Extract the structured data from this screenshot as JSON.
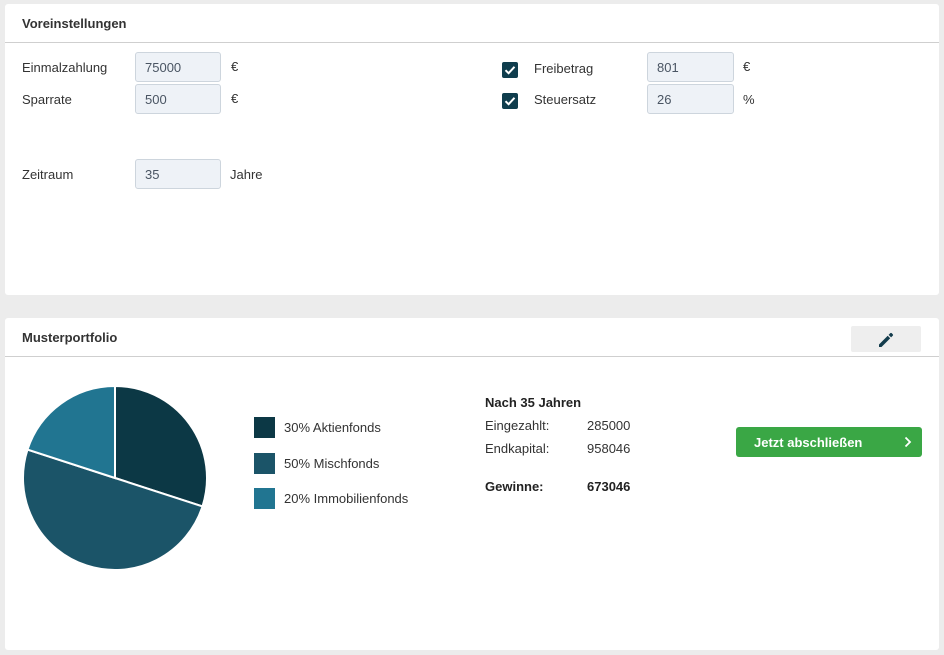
{
  "settings": {
    "title": "Voreinstellungen",
    "einmalzahlung": {
      "label": "Einmalzahlung",
      "value": "75000",
      "unit": "€"
    },
    "sparrate": {
      "label": "Sparrate",
      "value": "500",
      "unit": "€"
    },
    "zeitraum": {
      "label": "Zeitraum",
      "value": "35",
      "unit": "Jahre"
    },
    "freibetrag": {
      "label": "Freibetrag",
      "value": "801",
      "unit": "€",
      "checked": true
    },
    "steuersatz": {
      "label": "Steuersatz",
      "value": "26",
      "unit": "%",
      "checked": true
    }
  },
  "portfolio": {
    "title": "Musterportfolio",
    "edit_icon": "pencil-icon",
    "legend": [
      {
        "label": "30% Aktienfonds",
        "color": "#0c3845"
      },
      {
        "label": "50% Mischfonds",
        "color": "#1b5468"
      },
      {
        "label": "20% Immobilienfonds",
        "color": "#217591"
      }
    ],
    "summary": {
      "title": "Nach 35 Jahren",
      "eingezahlt_label": "Eingezahlt:",
      "eingezahlt_value": "285000",
      "endkapital_label": "Endkapital:",
      "endkapital_value": "958046",
      "gewinne_label": "Gewinne:",
      "gewinne_value": "673046"
    },
    "cta_label": "Jetzt abschließen",
    "cta_icon": "chevron-right-icon",
    "cta_color": "#3aa745"
  },
  "chart_data": {
    "type": "pie",
    "categories": [
      "Aktienfonds",
      "Mischfonds",
      "Immobilienfonds"
    ],
    "values": [
      30,
      50,
      20
    ],
    "colors": [
      "#0c3845",
      "#1b5468",
      "#217591"
    ],
    "start_angle_deg": 0,
    "direction": "clockwise"
  }
}
